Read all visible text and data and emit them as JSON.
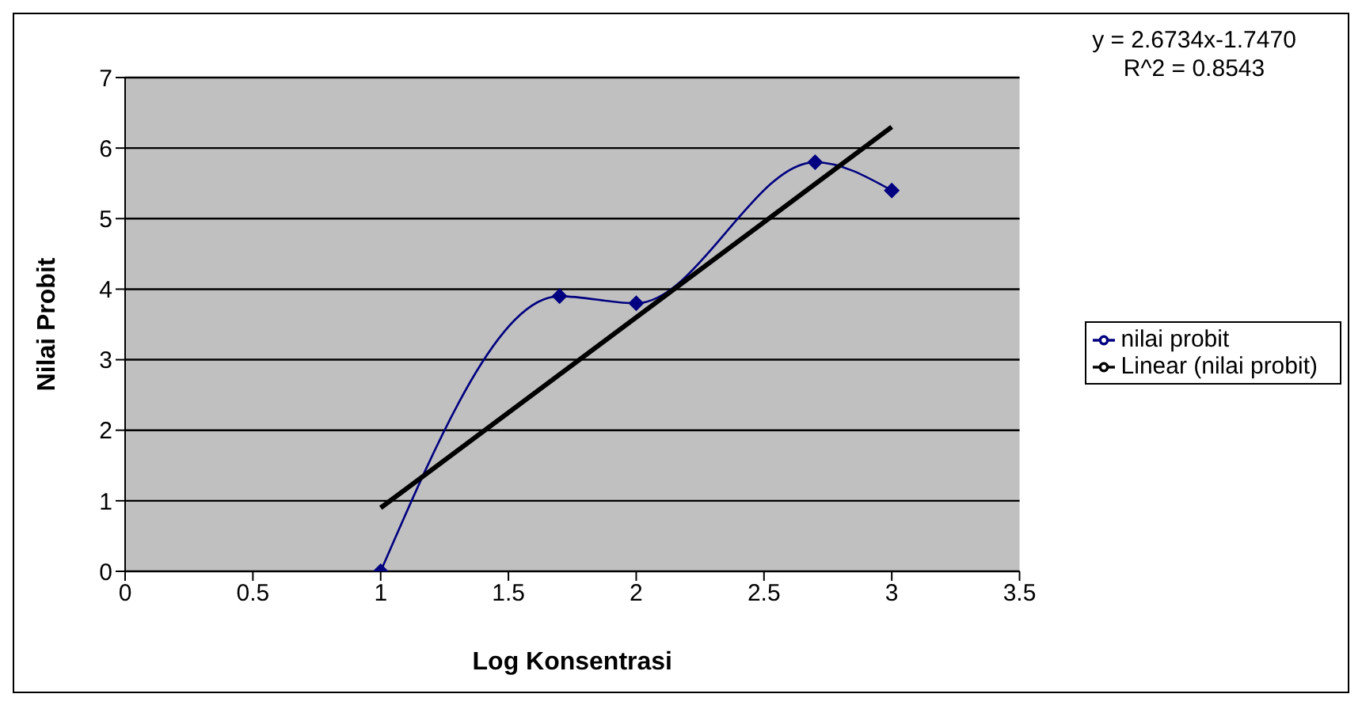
{
  "chart_data": {
    "type": "line",
    "xlabel": "Log Konsentrasi",
    "ylabel": "Nilai Probit",
    "annotations": [
      "y = 2.6734x-1.7470",
      "R^2 = 0.8543"
    ],
    "x": [
      1,
      1.7,
      2,
      2.7,
      3
    ],
    "series": [
      {
        "name": "nilai probit",
        "color": "#000080",
        "values": [
          0,
          3.9,
          3.8,
          5.8,
          5.4
        ],
        "marker": "diamond"
      },
      {
        "name": "Linear (nilai probit)",
        "color": "#000000",
        "type": "line",
        "x": [
          1,
          3
        ],
        "values": [
          0.9,
          6.3
        ],
        "marker": "none"
      }
    ],
    "xlim": [
      0,
      3.5
    ],
    "xticks": [
      0,
      0.5,
      1,
      1.5,
      2,
      2.5,
      3,
      3.5
    ],
    "ylim": [
      0,
      7
    ],
    "yticks": [
      0,
      1,
      2,
      3,
      4,
      5,
      6,
      7
    ],
    "grid": "y",
    "legend": "right"
  }
}
